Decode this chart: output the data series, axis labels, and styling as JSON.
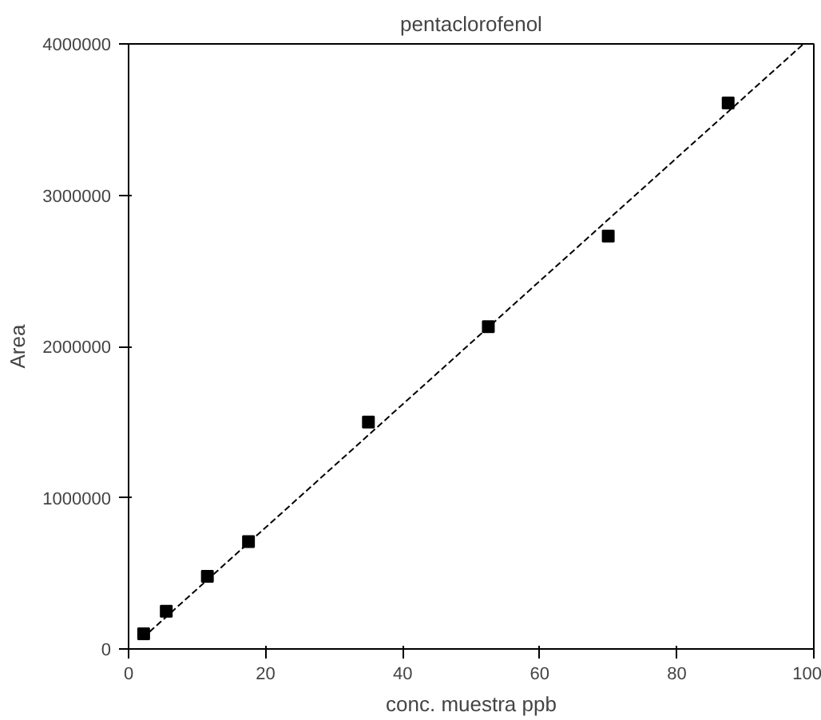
{
  "chart_data": {
    "type": "scatter",
    "title": "pentaclorofenol",
    "xlabel": "conc. muestra ppb",
    "ylabel": "Area",
    "xlim": [
      0,
      100
    ],
    "xticks": [
      0,
      20,
      40,
      60,
      80,
      100
    ],
    "ylim": [
      0,
      4000000
    ],
    "yticks": [
      0,
      1000000,
      2000000,
      3000000,
      4000000
    ],
    "grid": false,
    "series": [
      {
        "color": "#000000",
        "marker": "square",
        "x": [
          2.2,
          5.5,
          11.5,
          17.5,
          35,
          52.5,
          70,
          87.5
        ],
        "values": [
          100000,
          250000,
          480000,
          710000,
          1500000,
          2130000,
          2730000,
          3610000
        ]
      },
      {
        "type": "line",
        "color": "#000000",
        "line_style": "dashed",
        "x": [
          2,
          98.5
        ],
        "values": [
          70000,
          4000000
        ]
      }
    ]
  }
}
